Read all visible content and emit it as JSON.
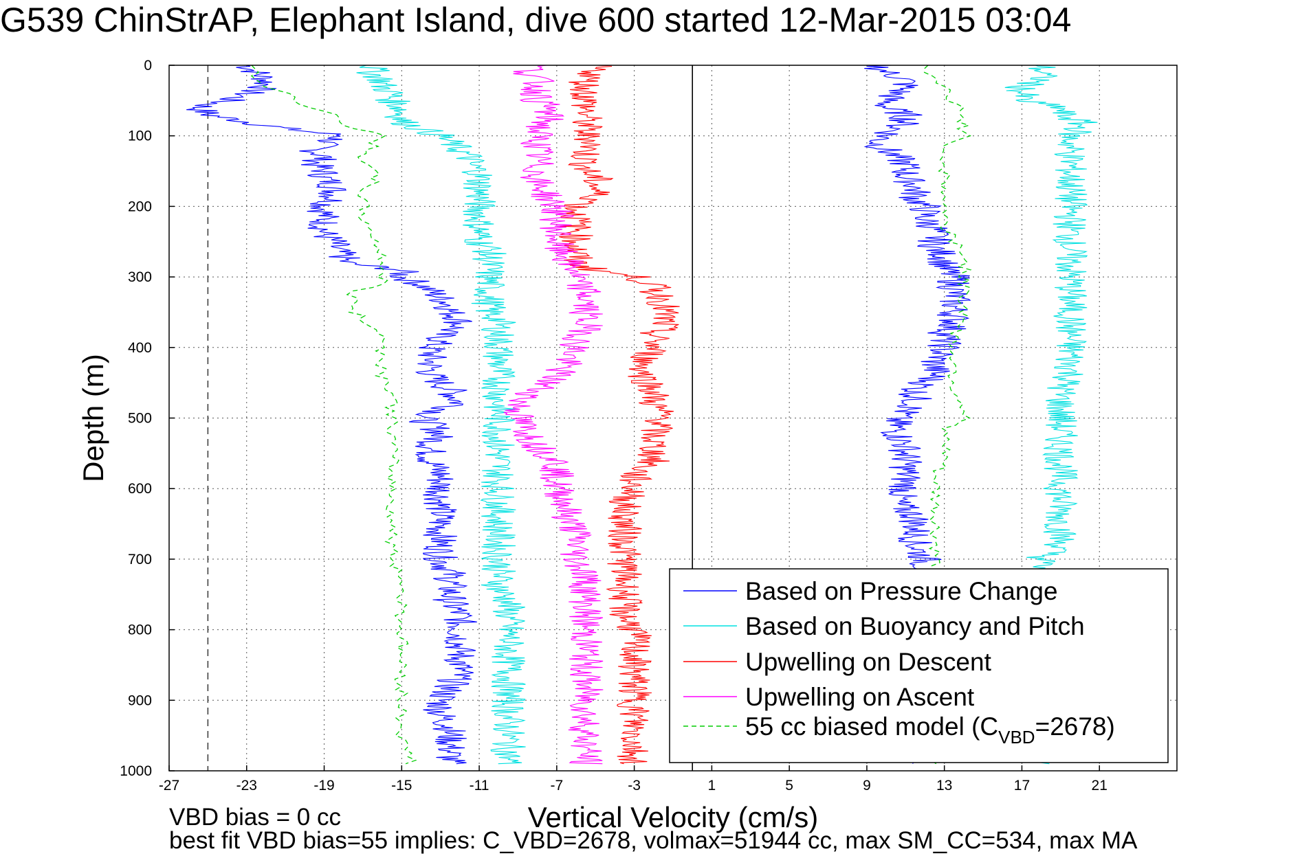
{
  "chart_data": {
    "type": "line",
    "title": "G539 ChinStrAP, Elephant Island, dive 600 started 12-Mar-2015 03:04",
    "xlabel": "Vertical Velocity (cm/s)",
    "ylabel": "Depth (m)",
    "xlim": [
      -27,
      25
    ],
    "ylim": [
      0,
      1000
    ],
    "y_reversed": true,
    "xticks": [
      -27,
      -23,
      -19,
      -15,
      -11,
      -7,
      -3,
      1,
      5,
      9,
      13,
      17,
      21
    ],
    "yticks": [
      0,
      100,
      200,
      300,
      400,
      500,
      600,
      700,
      800,
      900,
      1000
    ],
    "grid": true,
    "legend_position": "bottom-right",
    "reference_lines": [
      {
        "x": -25,
        "style": "dashed",
        "color": "#404040"
      },
      {
        "x": 0,
        "style": "solid",
        "color": "#000000"
      }
    ],
    "depth": [
      0,
      10,
      20,
      30,
      40,
      50,
      60,
      70,
      80,
      90,
      100,
      110,
      120,
      130,
      140,
      150,
      160,
      170,
      180,
      190,
      200,
      210,
      220,
      230,
      240,
      250,
      260,
      270,
      280,
      290,
      300,
      310,
      320,
      330,
      340,
      350,
      360,
      370,
      380,
      390,
      400,
      420,
      440,
      460,
      480,
      500,
      520,
      540,
      560,
      580,
      600,
      620,
      640,
      660,
      680,
      700,
      720,
      740,
      760,
      780,
      800,
      820,
      840,
      860,
      880,
      900,
      920,
      940,
      960,
      980,
      990
    ],
    "series": [
      {
        "name": "Based on Pressure Change",
        "color": "#0000ff",
        "dash": "",
        "descent": [
          -23,
          -22.5,
          -22,
          -22,
          -23,
          -24,
          -25.5,
          -25,
          -23,
          -21,
          -18,
          -19,
          -19.5,
          -19,
          -19.5,
          -19,
          -19,
          -18.5,
          -18.5,
          -18.5,
          -19,
          -19,
          -19,
          -19,
          -19,
          -18.5,
          -18.5,
          -18,
          -18,
          -15,
          -15,
          -14,
          -13.5,
          -13,
          -12.5,
          -12.5,
          -12,
          -12,
          -13,
          -13,
          -13.5,
          -13.5,
          -13.5,
          -12.5,
          -12,
          -14,
          -13,
          -13.5,
          -13.5,
          -13,
          -13,
          -13,
          -13,
          -13,
          -13,
          -13,
          -12.5,
          -12.5,
          -12.5,
          -12,
          -12,
          -12,
          -12,
          -12,
          -12.5,
          -13,
          -13,
          -12.5,
          -12.5,
          -12.5,
          -12.5
        ],
        "ascent": [
          9.5,
          10,
          11,
          11,
          10.5,
          10,
          10,
          11,
          11,
          10.5,
          10,
          9.5,
          10,
          10.5,
          11,
          11,
          11,
          11.5,
          11.5,
          11.5,
          12,
          12,
          12,
          12.5,
          12.5,
          12.5,
          12.5,
          13,
          13,
          13,
          13.5,
          13.5,
          13.5,
          13.5,
          13.5,
          13.5,
          13.5,
          13.5,
          13,
          13,
          13,
          12.5,
          12.5,
          11.5,
          11.5,
          10.5,
          10.5,
          11,
          11,
          11,
          11,
          10.5,
          11.5,
          11.5,
          11.5,
          12,
          12,
          12,
          12,
          12,
          12,
          12,
          12,
          12,
          12,
          12,
          12,
          12,
          12,
          12,
          12
        ]
      },
      {
        "name": "Based on Buoyancy and Pitch",
        "color": "#00e0e0",
        "dash": "",
        "descent": [
          -16.5,
          -16.5,
          -16,
          -16,
          -15.5,
          -15.5,
          -15,
          -15,
          -15,
          -14,
          -13,
          -12.5,
          -12,
          -11.5,
          -11.5,
          -11,
          -11,
          -11,
          -11,
          -11,
          -11,
          -11,
          -11,
          -11,
          -11,
          -11,
          -10.5,
          -10.5,
          -10.5,
          -10.5,
          -10.5,
          -10.5,
          -10.5,
          -10.5,
          -10.5,
          -10.5,
          -10,
          -10,
          -10,
          -10,
          -10,
          -10,
          -10,
          -10,
          -10,
          -10,
          -10,
          -10,
          -10,
          -10,
          -10,
          -10,
          -10,
          -10,
          -10,
          -10,
          -10,
          -10,
          -9.5,
          -9.5,
          -9.5,
          -9.5,
          -9.5,
          -9.5,
          -9.5,
          -9.5,
          -9.5,
          -9.5,
          -9.5,
          -9.5,
          -9.5
        ],
        "ascent": [
          18,
          18,
          18,
          17,
          17,
          17,
          19,
          19,
          20,
          20,
          19.5,
          19.5,
          19.5,
          19.5,
          19.5,
          19.5,
          19.5,
          19.5,
          19.5,
          19.5,
          19.5,
          19.5,
          19.5,
          19.5,
          19.5,
          19.5,
          19.5,
          19.5,
          19.5,
          19.5,
          19.5,
          19.5,
          19.5,
          19.5,
          19.5,
          19.5,
          19.5,
          19.5,
          19.5,
          19.5,
          19.5,
          19.5,
          19.5,
          19,
          19,
          19,
          19,
          19,
          19,
          19,
          19,
          19,
          19,
          19,
          19,
          18,
          18,
          18,
          18,
          18,
          18,
          18,
          18,
          18,
          18,
          18,
          18,
          18,
          18,
          18,
          18
        ]
      },
      {
        "name": "Upwelling on Descent",
        "color": "#ff0000",
        "dash": "",
        "values": [
          -5,
          -5,
          -5.5,
          -5.5,
          -5.5,
          -5.5,
          -5.5,
          -5.5,
          -5.5,
          -5.5,
          -5.5,
          -5,
          -5.5,
          -5.5,
          -5.5,
          -5.5,
          -5,
          -5,
          -5,
          -5,
          -6,
          -6,
          -6,
          -6,
          -6,
          -6,
          -6,
          -6,
          -6,
          -5,
          -3,
          -2,
          -2,
          -1.5,
          -1.5,
          -1.5,
          -1.5,
          -1.5,
          -2,
          -2,
          -2,
          -2.5,
          -2.5,
          -2,
          -2,
          -1.5,
          -2,
          -2,
          -2,
          -3,
          -3,
          -3.5,
          -3.5,
          -3.5,
          -3.5,
          -3.5,
          -3.5,
          -3.5,
          -3.5,
          -3.5,
          -3,
          -3,
          -3,
          -3,
          -3,
          -3,
          -3,
          -3,
          -3,
          -3,
          -3
        ]
      },
      {
        "name": "Upwelling on Ascent",
        "color": "#ff00ff",
        "dash": "",
        "values": [
          -8,
          -8.5,
          -8,
          -8,
          -8,
          -8,
          -7.5,
          -7.5,
          -7.5,
          -8,
          -8,
          -8,
          -8,
          -8,
          -8,
          -8,
          -8,
          -8,
          -7.5,
          -7.5,
          -7,
          -7,
          -7,
          -7,
          -7,
          -7,
          -7,
          -6.5,
          -6.5,
          -6,
          -6,
          -6,
          -5.5,
          -5.5,
          -5.5,
          -5.5,
          -5.5,
          -5.5,
          -5.5,
          -6,
          -6,
          -6.5,
          -7,
          -8,
          -9,
          -9,
          -8.5,
          -8,
          -7,
          -7,
          -7,
          -6.5,
          -6.5,
          -6,
          -6,
          -6,
          -5.5,
          -5.5,
          -5.5,
          -5.5,
          -5.5,
          -5.5,
          -5.5,
          -5.5,
          -5.5,
          -5.5,
          -5.5,
          -5.5,
          -5.5,
          -5.5,
          -5.5
        ]
      },
      {
        "name": "55 cc biased model (C",
        "name_sub": "VBD",
        "name_suffix": "=2678)",
        "color": "#00cc00",
        "dash": "7,5",
        "descent": [
          -23,
          -22.5,
          -22.5,
          -22,
          -21,
          -20.5,
          -19.5,
          -18.5,
          -18,
          -17.5,
          -16,
          -16.5,
          -16.5,
          -17,
          -17,
          -16.5,
          -16.5,
          -16.5,
          -17,
          -17,
          -17,
          -17,
          -17,
          -16.5,
          -16.5,
          -16.5,
          -16,
          -16,
          -16,
          -16,
          -16,
          -16,
          -17.5,
          -17.5,
          -17.5,
          -17.5,
          -17,
          -16.5,
          -16,
          -16,
          -16,
          -16,
          -16,
          -15.5,
          -15.5,
          -15.5,
          -15.5,
          -15.5,
          -15.5,
          -15.5,
          -15.5,
          -15.5,
          -15.5,
          -15.5,
          -15.5,
          -15.5,
          -15,
          -15,
          -15,
          -15,
          -15,
          -15,
          -15,
          -15,
          -15,
          -15,
          -15,
          -15,
          -15,
          -14.5,
          -14.5
        ],
        "ascent": [
          12,
          12,
          12.5,
          13,
          13,
          13,
          14,
          14,
          14,
          14,
          14,
          13.5,
          13,
          13,
          13,
          13,
          13,
          13,
          13,
          13,
          13,
          13,
          13,
          13,
          13.5,
          13.5,
          14,
          14,
          14,
          14,
          14,
          14,
          14,
          14,
          14,
          14,
          14,
          14,
          13.5,
          13.5,
          13.5,
          13.5,
          13.5,
          13.5,
          14,
          14,
          13,
          13,
          13,
          12.5,
          12.5,
          12.5,
          12.5,
          12.5,
          12.5,
          12.5,
          12.5,
          12.5,
          12.5,
          12.5,
          12.5,
          12.5,
          12.5,
          12.5,
          12.5,
          12.5,
          12.5,
          12.5,
          12.5,
          12.5,
          12.5
        ]
      }
    ]
  },
  "footnote": {
    "line1": "VBD bias = 0 cc",
    "line2": "best fit VBD bias=55 implies: C_VBD=2678, volmax=51944 cc, max SM_CC=534, max MA"
  }
}
